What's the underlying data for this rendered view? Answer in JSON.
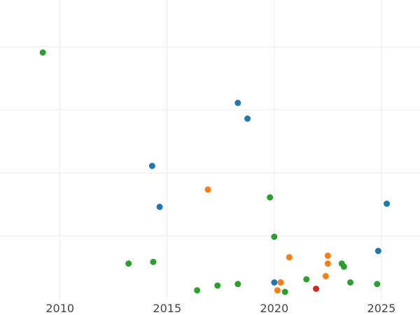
{
  "chart_data": {
    "type": "scatter",
    "xlim": [
      2007.2,
      2026.8
    ],
    "ylim": [
      0,
      1
    ],
    "x_ticks": [
      2010,
      2015,
      2020,
      2025
    ],
    "x_tick_labels": [
      "2010",
      "2015",
      "2020",
      "2025"
    ],
    "y_gridlines": [
      0.2,
      0.4,
      0.6,
      0.8
    ],
    "grid": true,
    "y_tick_labels_shown": false,
    "legend": "none",
    "series": [
      {
        "color": "#1f77b4",
        "points": [
          [
            2018.3,
            0.6
          ],
          [
            2018.75,
            0.55
          ],
          [
            2014.3,
            0.4
          ],
          [
            2014.65,
            0.27
          ],
          [
            2025.25,
            0.28
          ],
          [
            2024.85,
            0.13
          ],
          [
            2020.0,
            0.03
          ],
          [
            2020.3,
            0.03
          ]
        ]
      },
      {
        "color": "#ff7f0e",
        "points": [
          [
            2016.9,
            0.325
          ],
          [
            2020.7,
            0.11
          ],
          [
            2022.5,
            0.115
          ],
          [
            2022.5,
            0.09
          ],
          [
            2022.4,
            0.05
          ],
          [
            2020.3,
            0.03
          ],
          [
            2020.15,
            0.005
          ]
        ]
      },
      {
        "color": "#2ca02c",
        "points": [
          [
            2009.2,
            0.76
          ],
          [
            2019.8,
            0.3
          ],
          [
            2020.0,
            0.175
          ],
          [
            2013.2,
            0.09
          ],
          [
            2014.35,
            0.095
          ],
          [
            2016.4,
            0.005
          ],
          [
            2017.35,
            0.02
          ],
          [
            2018.3,
            0.025
          ],
          [
            2020.5,
            0.0
          ],
          [
            2021.5,
            0.04
          ],
          [
            2023.15,
            0.09
          ],
          [
            2023.25,
            0.08
          ],
          [
            2023.55,
            0.03
          ],
          [
            2024.8,
            0.025
          ]
        ]
      },
      {
        "color": "#d62728",
        "points": [
          [
            2021.95,
            0.01
          ]
        ]
      }
    ]
  }
}
